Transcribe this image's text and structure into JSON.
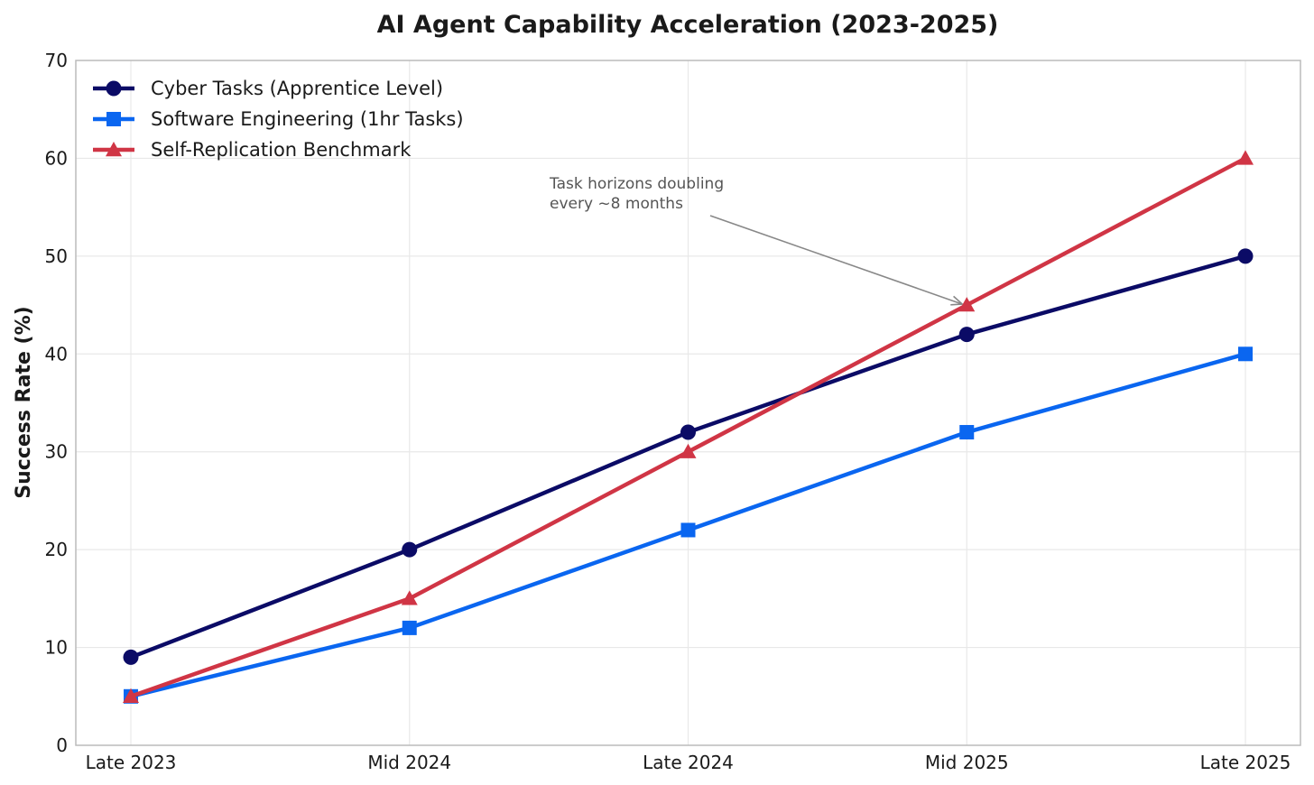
{
  "chart_data": {
    "type": "line",
    "title": "AI Agent Capability Acceleration (2023-2025)",
    "xlabel": "",
    "ylabel": "Success Rate (%)",
    "categories": [
      "Late 2023",
      "Mid 2024",
      "Late 2024",
      "Mid 2025",
      "Late 2025"
    ],
    "ylim": [
      0,
      70
    ],
    "yticks": [
      0,
      10,
      20,
      30,
      40,
      50,
      60,
      70
    ],
    "grid": true,
    "legend_position": "top-left",
    "series": [
      {
        "name": "Cyber Tasks (Apprentice Level)",
        "values": [
          9,
          20,
          32,
          42,
          50
        ],
        "color": "#0b0b66",
        "marker": "circle"
      },
      {
        "name": "Software Engineering (1hr Tasks)",
        "values": [
          5,
          12,
          22,
          32,
          40
        ],
        "color": "#0a66f0",
        "marker": "square"
      },
      {
        "name": "Self-Replication Benchmark",
        "values": [
          5,
          15,
          30,
          45,
          60
        ],
        "color": "#d03545",
        "marker": "triangle"
      }
    ],
    "annotations": [
      {
        "lines": [
          "Task horizons doubling",
          "every ~8 months"
        ],
        "points_to": {
          "category": "Mid 2025",
          "value": 45
        },
        "color": "#555555"
      }
    ]
  }
}
